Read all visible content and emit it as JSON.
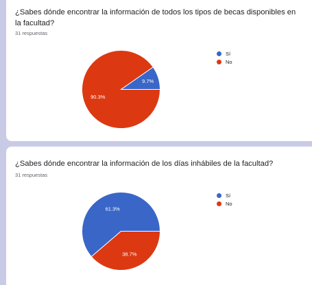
{
  "charts": [
    {
      "question": "¿Sabes dónde encontrar la información de todos los tipos de becas disponibles en la facultad?",
      "responses": "31 respuestas"
    },
    {
      "question": "¿Sabes dónde encontrar la información de los días inhábiles de la facultad?",
      "responses": "31 respuestas"
    }
  ],
  "colors": {
    "si": "#3a66c8",
    "no": "#dc3912"
  },
  "chart_data": [
    {
      "type": "pie",
      "title": "¿Sabes dónde encontrar la información de todos los tipos de becas disponibles en la facultad?",
      "categories": [
        "Sí",
        "No"
      ],
      "values": [
        9.7,
        90.3
      ],
      "labels": [
        "9.7%",
        "90.3%"
      ],
      "legend": "right"
    },
    {
      "type": "pie",
      "title": "¿Sabes dónde encontrar la información de los días inhábiles de la facultad?",
      "categories": [
        "Sí",
        "No"
      ],
      "values": [
        61.3,
        38.7
      ],
      "labels": [
        "61.3%",
        "38.7%"
      ],
      "legend": "right"
    }
  ]
}
